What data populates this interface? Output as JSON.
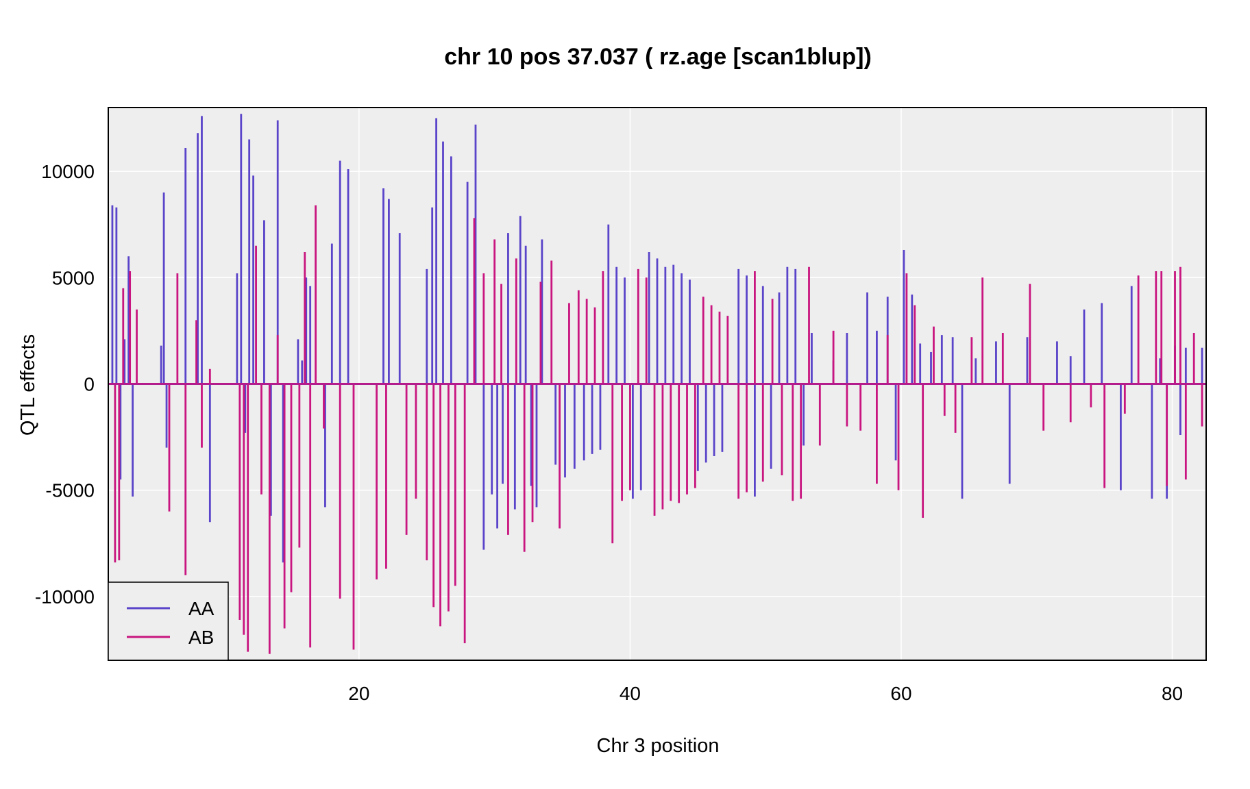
{
  "chart_data": {
    "type": "line",
    "title": "chr 10 pos 37.037 ( rz.age  [scan1blup])",
    "xlabel": "Chr 3 position",
    "ylabel": "QTL effects",
    "xlim": [
      1.5,
      82.5
    ],
    "ylim": [
      -13000,
      13000
    ],
    "xticks": [
      20,
      40,
      60,
      80
    ],
    "yticks": [
      -10000,
      -5000,
      0,
      5000,
      10000
    ],
    "xtick_labels": [
      "20",
      "40",
      "60",
      "80"
    ],
    "ytick_labels": [
      "-10000",
      "-5000",
      "0",
      "5000",
      "10000"
    ],
    "grid": true,
    "background_color": "#eeeeee",
    "legend": {
      "position": "bottom-left"
    },
    "series": [
      {
        "name": "AA",
        "color": "#5a44c9",
        "x": [
          1.8,
          2.1,
          2.4,
          2.7,
          3.0,
          3.3,
          5.4,
          5.6,
          5.8,
          7.2,
          8.1,
          8.4,
          9.0,
          11.0,
          11.3,
          11.6,
          11.9,
          12.2,
          13.0,
          13.5,
          14.0,
          14.4,
          15.5,
          15.8,
          16.1,
          16.4,
          17.5,
          18.0,
          18.6,
          19.2,
          21.8,
          22.2,
          23.0,
          25.0,
          25.4,
          25.7,
          26.2,
          26.8,
          28.0,
          28.6,
          29.2,
          29.8,
          30.2,
          30.6,
          31.0,
          31.5,
          31.9,
          32.3,
          32.7,
          33.1,
          33.5,
          34.5,
          35.2,
          35.9,
          36.6,
          37.2,
          37.8,
          38.4,
          39.0,
          39.6,
          40.2,
          40.8,
          41.4,
          42.0,
          42.6,
          43.2,
          43.8,
          44.4,
          45.0,
          45.6,
          46.2,
          46.8,
          48.0,
          48.6,
          49.2,
          49.8,
          50.4,
          51.0,
          51.6,
          52.2,
          52.8,
          53.4,
          55.0,
          56.0,
          57.5,
          58.2,
          59.0,
          59.6,
          60.2,
          60.8,
          61.4,
          62.2,
          63.0,
          63.8,
          64.5,
          65.5,
          67.0,
          68.0,
          69.3,
          71.5,
          72.5,
          73.5,
          74.8,
          76.2,
          77.0,
          78.5,
          79.1,
          79.6,
          80.2,
          80.6,
          81.0,
          82.2
        ],
        "values": [
          8400,
          8300,
          -4500,
          2100,
          6000,
          -5300,
          1800,
          9000,
          -3000,
          11100,
          11800,
          12600,
          -6500,
          5200,
          12700,
          -2300,
          11500,
          9800,
          7700,
          -6200,
          12400,
          -8400,
          2100,
          1100,
          5000,
          4600,
          -5800,
          6600,
          10500,
          10100,
          9200,
          8700,
          7100,
          5400,
          8300,
          12500,
          11400,
          10700,
          9500,
          12200,
          -7800,
          -5200,
          -6800,
          -4700,
          7100,
          -5900,
          7900,
          6500,
          -4800,
          -5800,
          6800,
          -3800,
          -4400,
          -4000,
          -3600,
          -3300,
          -3100,
          7500,
          5500,
          5000,
          -5400,
          -5000,
          6200,
          5900,
          5500,
          5600,
          5200,
          4900,
          -4100,
          -3700,
          -3400,
          -3200,
          5400,
          5100,
          -5300,
          4600,
          -4000,
          4300,
          5500,
          5400,
          -2900,
          2400,
          1100,
          2400,
          4300,
          2500,
          4100,
          -3600,
          6300,
          4200,
          1900,
          1500,
          2300,
          2200,
          -5400,
          1200,
          2000,
          -4700,
          2200,
          2000,
          1300,
          3500,
          3800,
          -5000,
          4600,
          -5400,
          1200,
          -5400,
          1800,
          -2400,
          1700,
          1700
        ]
      },
      {
        "name": "AB",
        "color": "#c8157f",
        "x": [
          2.0,
          2.3,
          2.6,
          3.1,
          3.6,
          6.0,
          6.6,
          7.2,
          8.0,
          8.4,
          9.0,
          11.2,
          11.5,
          11.8,
          12.4,
          12.8,
          13.4,
          14.0,
          14.5,
          15.0,
          15.6,
          16.0,
          16.4,
          16.8,
          17.4,
          18.6,
          19.6,
          21.3,
          22.0,
          23.5,
          24.2,
          25.0,
          25.5,
          26.0,
          26.6,
          27.1,
          27.8,
          28.5,
          29.2,
          30.0,
          30.5,
          31.0,
          31.6,
          32.2,
          32.8,
          33.4,
          34.2,
          34.8,
          35.5,
          36.2,
          36.8,
          37.4,
          38.0,
          38.7,
          39.4,
          40.0,
          40.6,
          41.2,
          41.8,
          42.4,
          43.0,
          43.6,
          44.2,
          44.8,
          45.4,
          46.0,
          46.6,
          47.2,
          48.0,
          48.6,
          49.2,
          49.8,
          50.5,
          51.2,
          52.0,
          52.6,
          53.2,
          54.0,
          55.0,
          56.0,
          57.0,
          58.2,
          59.0,
          59.8,
          60.4,
          61.0,
          61.6,
          62.4,
          63.2,
          64.0,
          65.2,
          66.0,
          67.5,
          69.5,
          70.5,
          72.5,
          74.0,
          75.0,
          76.5,
          77.5,
          78.8,
          79.2,
          79.6,
          80.2,
          80.6,
          81.0,
          81.6,
          82.2
        ],
        "values": [
          -8400,
          -8300,
          4500,
          5300,
          3500,
          -6000,
          5200,
          -9000,
          3000,
          -3000,
          700,
          -11100,
          -11800,
          -12600,
          6500,
          -5200,
          -12700,
          2300,
          -11500,
          -9800,
          -7700,
          6200,
          -12400,
          8400,
          -2100,
          -10100,
          -12500,
          -9200,
          -8700,
          -7100,
          -5400,
          -8300,
          -10500,
          -11400,
          -10700,
          -9500,
          -12200,
          7800,
          5200,
          6800,
          4700,
          -7100,
          5900,
          -7900,
          -6500,
          4800,
          5800,
          -6800,
          3800,
          4400,
          4000,
          3600,
          5300,
          -7500,
          -5500,
          -5000,
          5400,
          5000,
          -6200,
          -5900,
          -5500,
          -5600,
          -5200,
          -4900,
          4100,
          3700,
          3400,
          3200,
          -5400,
          -5100,
          5300,
          -4600,
          4000,
          -4300,
          -5500,
          -5400,
          5500,
          -2900,
          2500,
          -2000,
          -2200,
          -4700,
          2300,
          -5000,
          5200,
          3700,
          -6300,
          2700,
          -1500,
          -2300,
          2200,
          5000,
          2400,
          4700,
          -2200,
          -1800,
          -1100,
          -4900,
          -1400,
          5100,
          5300,
          5300,
          -4800,
          5300,
          5500,
          -4500,
          2400,
          -2000
        ]
      }
    ]
  }
}
